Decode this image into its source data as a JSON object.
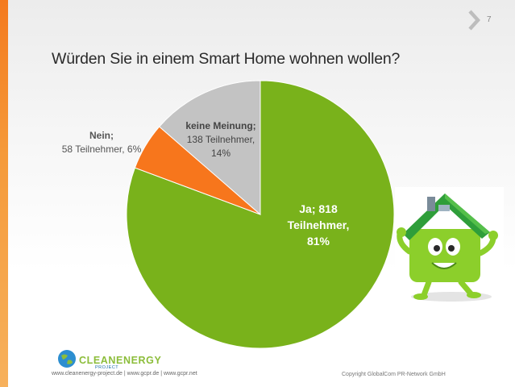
{
  "slide": {
    "page_number": "7",
    "title": "Würden Sie in einem Smart Home wohnen wollen?"
  },
  "chart_data": {
    "type": "pie",
    "title": "Würden Sie in einem Smart Home wohnen wollen?",
    "slices": [
      {
        "name": "Ja",
        "count": 818,
        "percent": 81,
        "color": "#79b21b",
        "label_line1": "Ja; 818",
        "label_line2": "Teilnehmer,",
        "label_line3": "81%"
      },
      {
        "name": "Nein",
        "count": 58,
        "percent": 6,
        "color": "#f7761c",
        "label_line1": "Nein;",
        "label_line2": "58 Teilnehmer, 6%"
      },
      {
        "name": "keine Meinung",
        "count": 138,
        "percent": 14,
        "color": "#c3c3c3",
        "label_line1": "keine Meinung;",
        "label_line2": "138 Teilnehmer,",
        "label_line3": "14%"
      }
    ]
  },
  "logo": {
    "name": "CLEANENERGY",
    "sub": "PROJECT"
  },
  "footer": {
    "links": "www.cleanenergy-project.de | www.gcpr.de | www.gcpr.net",
    "copyright": "Copyright GlobalCom PR-Network GmbH"
  },
  "colors": {
    "accent": "#f47a1e",
    "green": "#79b21b",
    "orange": "#f7761c",
    "grey": "#c3c3c3"
  }
}
